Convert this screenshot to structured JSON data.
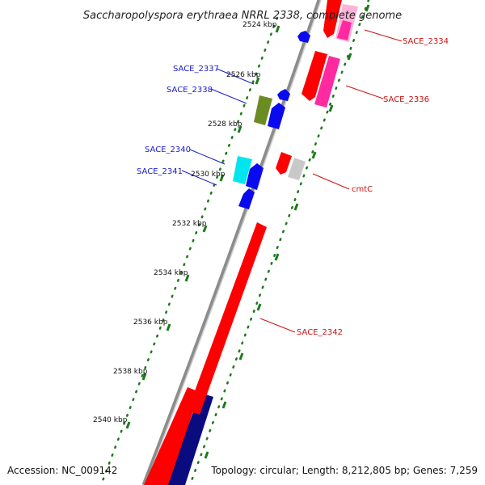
{
  "title": "Saccharopolyspora erythraea NRRL 2338, complete genome",
  "footer": {
    "accession": "Accession: NC_009142",
    "summary": "Topology: circular; Length: 8,212,805 bp; Genes: 7,259"
  },
  "scale_ticks": [
    "2524 kbp",
    "2526 kbp",
    "2528 kbp",
    "2530 kbp",
    "2532 kbp",
    "2534 kbp",
    "2536 kbp",
    "2538 kbp",
    "2540 kbp"
  ],
  "genes_reverse_strand": [
    "SACE_2337",
    "SACE_2338",
    "SACE_2340",
    "SACE_2341"
  ],
  "genes_forward_strand": [
    "SACE_2334",
    "SACE_2336",
    "cmtC",
    "SACE_2342"
  ],
  "colors": {
    "backbone": "#8c8c8c",
    "reverse_label": "#1a1acc",
    "forward_label": "#cc1111",
    "red": "#ff0000",
    "pink": "#ff2aa0",
    "light_pink": "#ffb3d9",
    "blue": "#0a0aee",
    "navy": "#0b0b80",
    "olive": "#6b8c23",
    "cyan": "#00e5ee",
    "grey": "#c8c8c8",
    "tick_dots": "#1a7a1a"
  }
}
